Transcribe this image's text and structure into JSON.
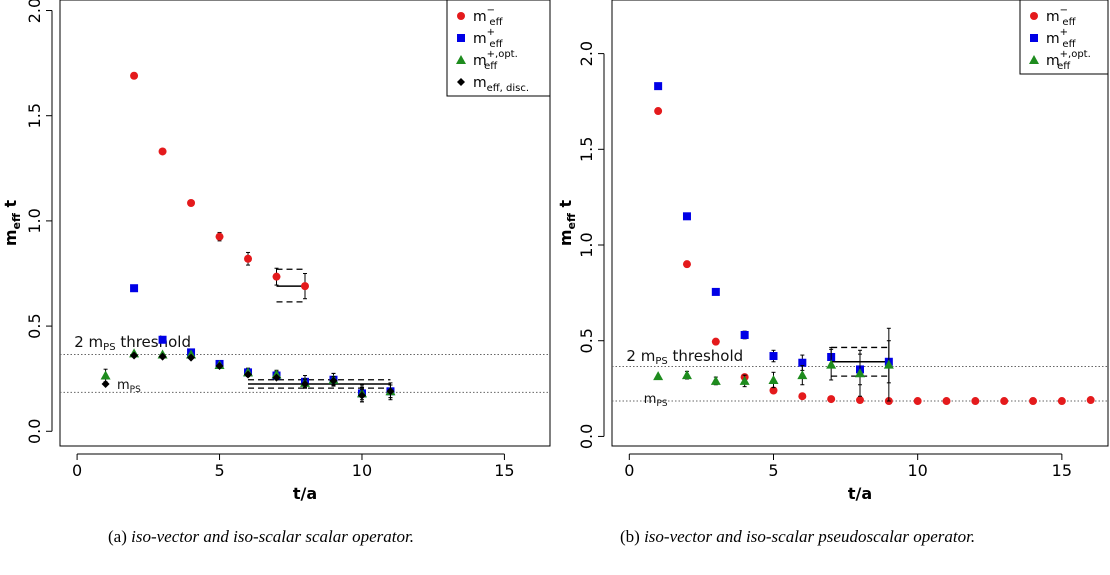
{
  "captions": [
    {
      "tag": "(a)",
      "text": "iso-vector and iso-scalar scalar operator."
    },
    {
      "tag": "(b)",
      "text": "iso-vector and iso-scalar pseudoscalar operator."
    }
  ],
  "chart_data": [
    {
      "type": "scatter",
      "xlabel": "t/a",
      "ylabel": "m_eff t",
      "xlim": [
        -0.6,
        16.6
      ],
      "ylim": [
        -0.07,
        2.05
      ],
      "xticks": [
        0,
        5,
        10,
        15
      ],
      "yticks": [
        0.0,
        0.5,
        1.0,
        1.5,
        2.0
      ],
      "ytick_labels": [
        "0.0",
        "0.5",
        "1.0",
        "1.5",
        "2.0"
      ],
      "legend_position": "top-right",
      "colors": {
        "m_minus": "#e41a1c",
        "m_plus": "#0000e6",
        "m_plus_opt": "#1e8c1e",
        "m_disc": "#000000"
      },
      "series": [
        {
          "key": "m_minus",
          "marker": "circle",
          "color": "#e41a1c",
          "legend_base": "m",
          "legend_sub": "eff",
          "legend_sup": "−",
          "points": [
            [
              2,
              1.69,
              0.01
            ],
            [
              3,
              1.33,
              0.01
            ],
            [
              4,
              1.085,
              0.01
            ],
            [
              5,
              0.925,
              0.02
            ],
            [
              6,
              0.82,
              0.03
            ],
            [
              7,
              0.735,
              0.04
            ],
            [
              8,
              0.69,
              0.06
            ]
          ]
        },
        {
          "key": "m_plus",
          "marker": "square",
          "color": "#0000e6",
          "legend_base": "m",
          "legend_sub": "eff",
          "legend_sup": "+",
          "points": [
            [
              2,
              0.68,
              0.01
            ],
            [
              3,
              0.435,
              0.01
            ],
            [
              4,
              0.375,
              0.01
            ],
            [
              5,
              0.32,
              0.01
            ],
            [
              6,
              0.28,
              0.02
            ],
            [
              7,
              0.265,
              0.02
            ],
            [
              8,
              0.235,
              0.03
            ],
            [
              9,
              0.245,
              0.03
            ],
            [
              10,
              0.18,
              0.03
            ],
            [
              11,
              0.19,
              0.03
            ]
          ]
        },
        {
          "key": "m_plus_opt",
          "marker": "triangle",
          "color": "#1e8c1e",
          "legend_base": "m",
          "legend_sub": "eff",
          "legend_sup": "+,opt.",
          "points": [
            [
              1,
              0.265,
              0.03
            ],
            [
              2,
              0.37,
              0.01
            ],
            [
              3,
              0.365,
              0.01
            ],
            [
              4,
              0.365,
              0.01
            ],
            [
              5,
              0.315,
              0.01
            ],
            [
              6,
              0.28,
              0.01
            ],
            [
              7,
              0.27,
              0.02
            ],
            [
              8,
              0.23,
              0.02
            ],
            [
              9,
              0.245,
              0.03
            ],
            [
              10,
              0.18,
              0.04
            ],
            [
              11,
              0.19,
              0.04
            ]
          ]
        },
        {
          "key": "m_disc",
          "marker": "diamond",
          "color": "#000000",
          "legend_base": "m",
          "legend_sub": "eff, disc.",
          "legend_sup": "",
          "points": [
            [
              1,
              0.225,
              0.01
            ],
            [
              2,
              0.36,
              0.01
            ],
            [
              3,
              0.355,
              0.01
            ],
            [
              4,
              0.35,
              0.01
            ],
            [
              5,
              0.31,
              0.01
            ],
            [
              6,
              0.27,
              0.01
            ],
            [
              7,
              0.255,
              0.01
            ],
            [
              8,
              0.225,
              0.02
            ],
            [
              9,
              0.24,
              0.02
            ],
            [
              10,
              0.17,
              0.03
            ],
            [
              11,
              0.19,
              0.03
            ]
          ]
        }
      ],
      "fits": [
        {
          "x_from": 7,
          "x_to": 8,
          "value": 0.69,
          "upper": 0.77,
          "lower": 0.615
        },
        {
          "x_from": 6,
          "x_to": 11,
          "value": 0.225,
          "upper": 0.245,
          "lower": 0.205
        }
      ],
      "hlines": [
        {
          "y": 0.365,
          "label": "2 m",
          "label_sub": "PS",
          "label_rest": " threshold",
          "label_x": -0.1,
          "label_y": 0.4
        },
        {
          "y": 0.185,
          "label": "m",
          "label_sub": "PS",
          "label_rest": "",
          "label_x": 1.4,
          "label_y": 0.2
        }
      ]
    },
    {
      "type": "scatter",
      "xlabel": "t/a",
      "ylabel": "m_eff t",
      "xlim": [
        -0.6,
        16.6
      ],
      "ylim": [
        -0.05,
        2.28
      ],
      "xticks": [
        0,
        5,
        10,
        15
      ],
      "yticks": [
        0.0,
        0.5,
        1.0,
        1.5,
        2.0
      ],
      "ytick_labels": [
        "0.0",
        "0.5",
        "1.0",
        "1.5",
        "2.0"
      ],
      "legend_position": "top-right",
      "colors": {
        "m_minus": "#e41a1c",
        "m_plus": "#0000e6",
        "m_plus_opt": "#1e8c1e"
      },
      "series": [
        {
          "key": "m_minus",
          "marker": "circle",
          "color": "#e41a1c",
          "legend_base": "m",
          "legend_sub": "eff",
          "legend_sup": "−",
          "points": [
            [
              1,
              1.7,
              0.01
            ],
            [
              2,
              0.9,
              0.01
            ],
            [
              3,
              0.495,
              0.01
            ],
            [
              4,
              0.31,
              0.01
            ],
            [
              5,
              0.24,
              0.01
            ],
            [
              6,
              0.21,
              0.01
            ],
            [
              7,
              0.195,
              0.01
            ],
            [
              8,
              0.19,
              0.01
            ],
            [
              9,
              0.185,
              0.01
            ],
            [
              10,
              0.185,
              0.01
            ],
            [
              11,
              0.185,
              0.01
            ],
            [
              12,
              0.185,
              0.01
            ],
            [
              13,
              0.185,
              0.01
            ],
            [
              14,
              0.185,
              0.01
            ],
            [
              15,
              0.185,
              0.01
            ],
            [
              16,
              0.19,
              0.01
            ]
          ]
        },
        {
          "key": "m_plus",
          "marker": "square",
          "color": "#0000e6",
          "legend_base": "m",
          "legend_sub": "eff",
          "legend_sup": "+",
          "points": [
            [
              1,
              1.83,
              0.01
            ],
            [
              2,
              1.15,
              0.01
            ],
            [
              3,
              0.755,
              0.01
            ],
            [
              4,
              0.53,
              0.02
            ],
            [
              5,
              0.42,
              0.03
            ],
            [
              6,
              0.385,
              0.04
            ],
            [
              7,
              0.415,
              0.05
            ],
            [
              8,
              0.35,
              0.08
            ],
            [
              9,
              0.39,
              0.11
            ]
          ]
        },
        {
          "key": "m_plus_opt",
          "marker": "triangle",
          "color": "#1e8c1e",
          "legend_base": "m",
          "legend_sub": "eff",
          "legend_sup": "+,opt.",
          "points": [
            [
              1,
              0.315,
              0.01
            ],
            [
              2,
              0.32,
              0.02
            ],
            [
              3,
              0.29,
              0.02
            ],
            [
              4,
              0.29,
              0.03
            ],
            [
              5,
              0.295,
              0.04
            ],
            [
              6,
              0.32,
              0.05
            ],
            [
              7,
              0.375,
              0.08
            ],
            [
              8,
              0.33,
              0.12
            ],
            [
              9,
              0.375,
              0.19
            ]
          ]
        }
      ],
      "fits": [
        {
          "x_from": 7,
          "x_to": 9,
          "value": 0.39,
          "upper": 0.465,
          "lower": 0.315
        }
      ],
      "hlines": [
        {
          "y": 0.365,
          "label": "2 m",
          "label_sub": "PS",
          "label_rest": " threshold",
          "label_x": -0.1,
          "label_y": 0.395
        },
        {
          "y": 0.185,
          "label": "m",
          "label_sub": "PS",
          "label_rest": "",
          "label_x": 0.5,
          "label_y": 0.175
        }
      ]
    }
  ]
}
